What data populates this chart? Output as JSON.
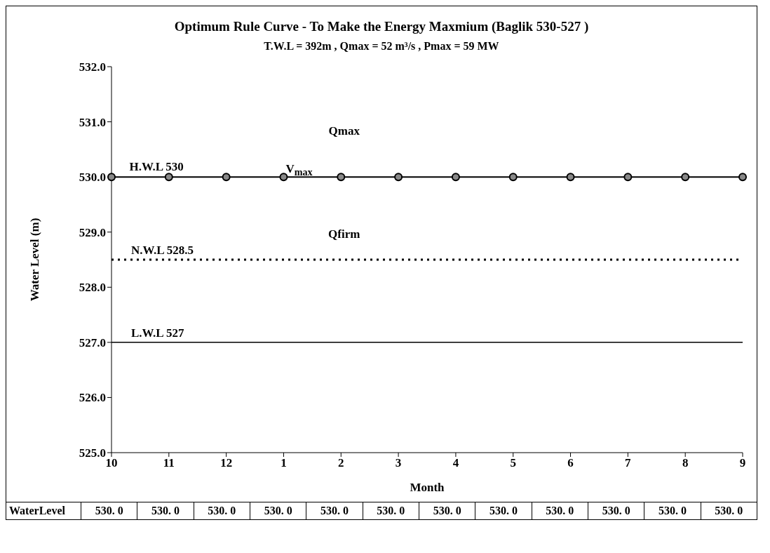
{
  "chart_data": {
    "type": "line",
    "title": "Optimum Rule Curve - To Make the Energy Maxmium (Baglik 530-527 )",
    "subtitle": "T.W.L = 392m , Qmax = 52 m³/s  , Pmax = 59 MW",
    "xlabel": "Month",
    "ylabel": "Water Level (m)",
    "categories": [
      "10",
      "11",
      "12",
      "1",
      "2",
      "3",
      "4",
      "5",
      "6",
      "7",
      "8",
      "9"
    ],
    "series": [
      {
        "name": "WaterLevel",
        "color": "#000000",
        "values": [
          530,
          530,
          530,
          530,
          530,
          530,
          530,
          530,
          530,
          530,
          530,
          530
        ],
        "value_labels": [
          "530. 0",
          "530. 0",
          "530. 0",
          "530. 0",
          "530. 0",
          "530. 0",
          "530. 0",
          "530. 0",
          "530. 0",
          "530. 0",
          "530. 0",
          "530. 0"
        ]
      }
    ],
    "ylim": [
      525,
      532
    ],
    "yticks": [
      {
        "value": 525,
        "label": "525.0"
      },
      {
        "value": 526,
        "label": "526.0"
      },
      {
        "value": 527,
        "label": "527.0"
      },
      {
        "value": 528,
        "label": "528.0"
      },
      {
        "value": 529,
        "label": "529.0"
      },
      {
        "value": 530,
        "label": "530.0"
      },
      {
        "value": 531,
        "label": "531.0"
      },
      {
        "value": 532,
        "label": "532.0"
      }
    ],
    "ref_lines": [
      {
        "axis": "y",
        "value": 528.5,
        "label": "N.W.L 528.5",
        "line_style": "dotted",
        "color": "#000000"
      },
      {
        "axis": "y",
        "value": 527,
        "label": "L.W.L  527",
        "line_style": "solid",
        "color": "#000000"
      }
    ],
    "annotations": [
      "H.W.L 530",
      "Qmax",
      "V$_{max}$",
      "Qfirm"
    ],
    "marker": "circle",
    "line_style": "solid",
    "grid": false,
    "legend": "bottom"
  }
}
